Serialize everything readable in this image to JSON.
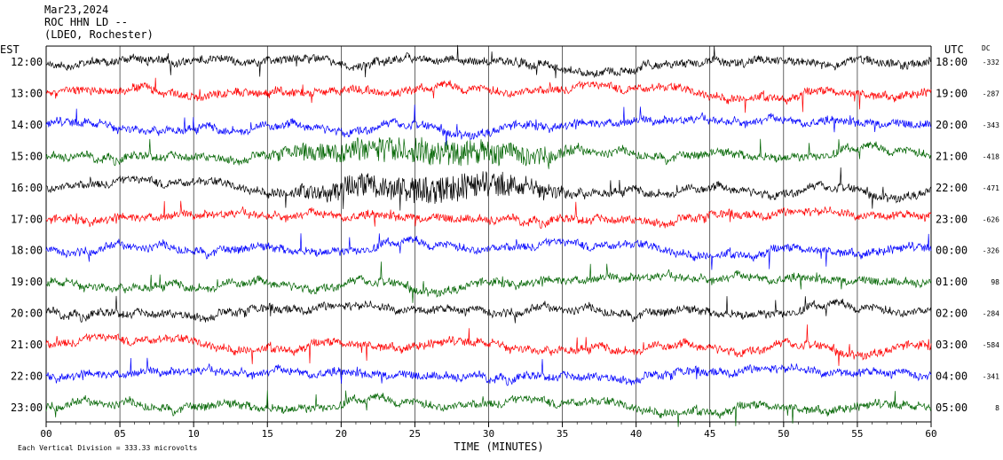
{
  "header": {
    "date": "Mar23,2024",
    "station": "ROC HHN LD --",
    "network": "(LDEO, Rochester)"
  },
  "chart_data": {
    "type": "line",
    "title": "",
    "left_axis_label": "EST",
    "right_axis_label": "UTC",
    "dc_label": "DC",
    "xlabel": "TIME (MINUTES)",
    "xlim": [
      0,
      60
    ],
    "x_ticks": [
      "00",
      "05",
      "10",
      "15",
      "20",
      "25",
      "30",
      "35",
      "40",
      "45",
      "50",
      "55",
      "60"
    ],
    "grid": true,
    "scale_note": "Each Vertical Division =  333.33 microvolts",
    "trace_colors": [
      "#000000",
      "#ff0000",
      "#0000ff",
      "#006400"
    ],
    "rows": [
      {
        "est": "12:00",
        "utc": "18:00",
        "dc": "-332"
      },
      {
        "est": "13:00",
        "utc": "19:00",
        "dc": "-287"
      },
      {
        "est": "14:00",
        "utc": "20:00",
        "dc": "-343"
      },
      {
        "est": "15:00",
        "utc": "21:00",
        "dc": "-418"
      },
      {
        "est": "16:00",
        "utc": "22:00",
        "dc": "-471"
      },
      {
        "est": "17:00",
        "utc": "23:00",
        "dc": "-626"
      },
      {
        "est": "18:00",
        "utc": "00:00",
        "dc": "-326"
      },
      {
        "est": "19:00",
        "utc": "01:00",
        "dc": "98"
      },
      {
        "est": "20:00",
        "utc": "02:00",
        "dc": "-284"
      },
      {
        "est": "21:00",
        "utc": "03:00",
        "dc": "-584"
      },
      {
        "est": "22:00",
        "utc": "04:00",
        "dc": "-341"
      },
      {
        "est": "23:00",
        "utc": "05:00",
        "dc": "8"
      }
    ]
  }
}
